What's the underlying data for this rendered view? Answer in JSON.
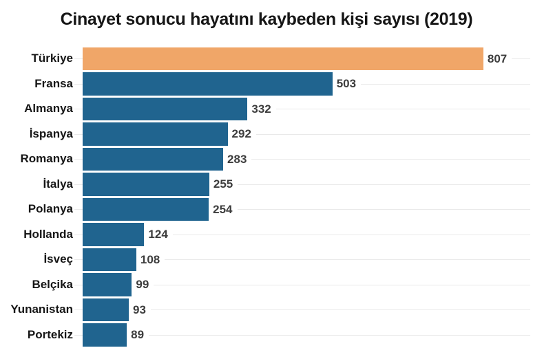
{
  "title": "Cinayet sonucu hayatını kaybeden kişi sayısı (2019)",
  "chart_data": {
    "type": "bar",
    "orientation": "horizontal",
    "title": "Cinayet sonucu hayatını kaybeden kişi sayısı (2019)",
    "xlabel": "",
    "ylabel": "",
    "categories": [
      "Türkiye",
      "Fransa",
      "Almanya",
      "İspanya",
      "Romanya",
      "İtalya",
      "Polanya",
      "Hollanda",
      "İsveç",
      "Belçika",
      "Yunanistan",
      "Portekiz"
    ],
    "values": [
      807,
      503,
      332,
      292,
      283,
      255,
      254,
      124,
      108,
      99,
      93,
      89
    ],
    "xlim": [
      0,
      907
    ],
    "grid": "horizontal-row-lines",
    "legend": "none",
    "value_labels": "end-of-bar",
    "bar_color": "#20648f",
    "highlight": {
      "category": "Türkiye",
      "color": "#f0a668"
    }
  },
  "colors": {
    "background": "#ffffff",
    "title_text": "#161616",
    "category_text": "#161616",
    "value_text": "#3d3d3d",
    "gridline": "#e9e9e9",
    "bar_default": "#20648f",
    "bar_highlight": "#f0a668"
  }
}
